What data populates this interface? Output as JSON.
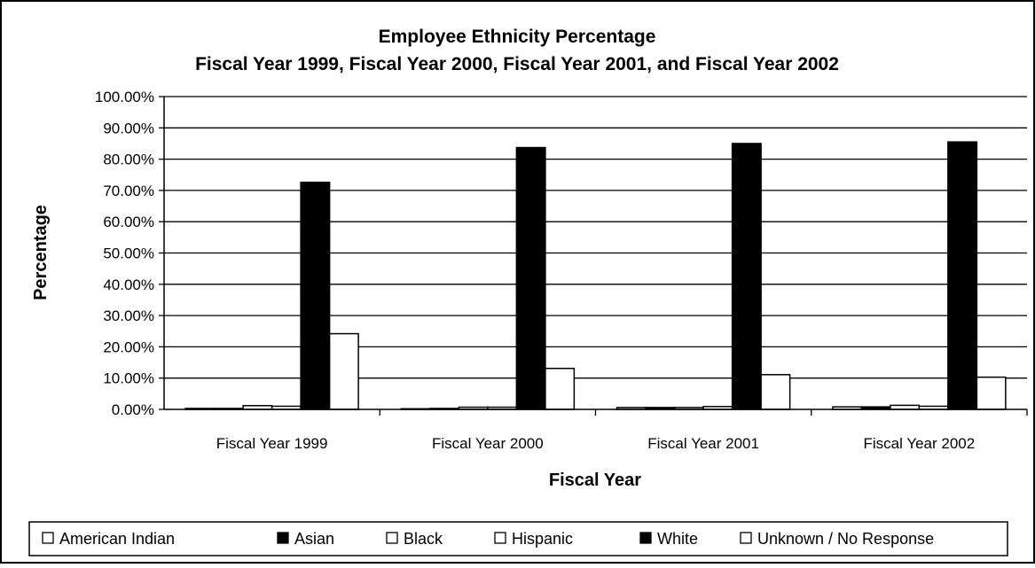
{
  "chart_data": {
    "type": "bar",
    "title": "Employee Ethnicity Percentage",
    "subtitle": "Fiscal Year 1999, Fiscal Year 2000, Fiscal Year 2001, and Fiscal Year 2002",
    "xlabel": "Fiscal Year",
    "ylabel": "Percentage",
    "ylim": [
      0,
      100
    ],
    "y_ticks": [
      "0.00%",
      "10.00%",
      "20.00%",
      "30.00%",
      "40.00%",
      "50.00%",
      "60.00%",
      "70.00%",
      "80.00%",
      "90.00%",
      "100.00%"
    ],
    "grid": true,
    "legend_position": "bottom",
    "categories": [
      "Fiscal Year 1999",
      "Fiscal Year 2000",
      "Fiscal Year 2001",
      "Fiscal Year 2002"
    ],
    "series": [
      {
        "name": "American Indian",
        "color": "#ffffff",
        "values": [
          0.3,
          0.2,
          0.6,
          0.8
        ]
      },
      {
        "name": "Asian",
        "color": "#000000",
        "values": [
          0.3,
          0.3,
          0.6,
          0.8
        ]
      },
      {
        "name": "Black",
        "color": "#ffffff",
        "values": [
          1.2,
          0.7,
          0.6,
          1.3
        ]
      },
      {
        "name": "Hispanic",
        "color": "#ffffff",
        "values": [
          1.0,
          0.7,
          0.9,
          1.0
        ]
      },
      {
        "name": "White",
        "color": "#000000",
        "values": [
          72.6,
          83.7,
          85.0,
          85.5
        ]
      },
      {
        "name": "Unknown / No Response",
        "color": "#ffffff",
        "values": [
          24.2,
          13.1,
          11.1,
          10.3
        ]
      }
    ]
  }
}
